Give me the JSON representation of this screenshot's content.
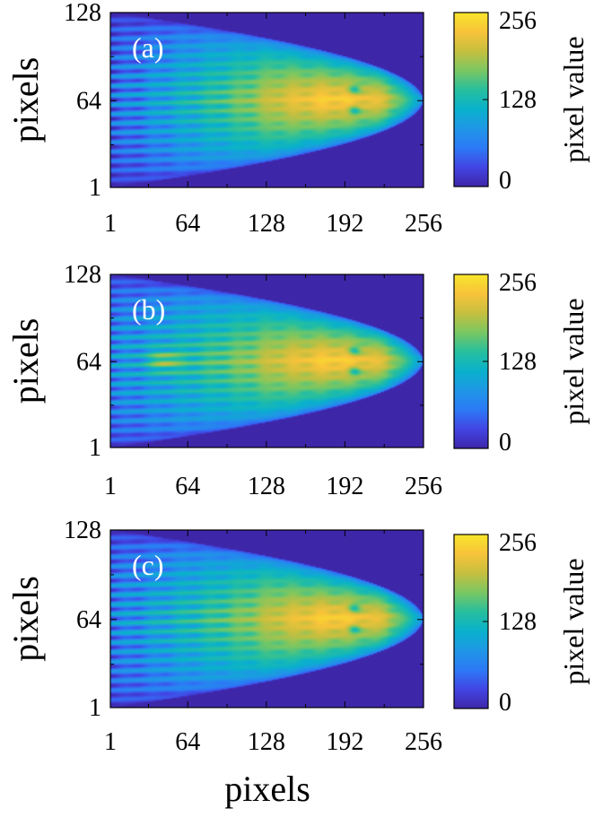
{
  "colors": {
    "background": "#3e26a8",
    "axis": "#000000",
    "panel_label": "#ffffff",
    "colormap": [
      "#3e26a8",
      "#4245e4",
      "#2c79f6",
      "#1f97e6",
      "#09b1cc",
      "#27bf9e",
      "#7ac762",
      "#c6bf3f",
      "#f8c33a",
      "#f9e62b"
    ]
  },
  "colormap_name": "parula",
  "x_axis_title": "pixels",
  "chart_data": [
    {
      "type": "heatmap",
      "panel_label": "(a)",
      "xlabel": "",
      "ylabel": "pixels",
      "xlim": [
        1,
        256
      ],
      "ylim": [
        1,
        128
      ],
      "x_ticks": [
        "1",
        "64",
        "128",
        "192",
        "256"
      ],
      "y_ticks": [
        "1",
        "64",
        "128"
      ],
      "colorbar": {
        "label": "pixel value",
        "range": [
          0,
          256
        ],
        "ticks": [
          "0",
          "128",
          "256"
        ]
      },
      "description": "Arrowhead-shaped interference pattern, background 0, peak ~230 near x 160-220, y 64; fringes extend left with low values near x 20-60"
    },
    {
      "type": "heatmap",
      "panel_label": "(b)",
      "xlabel": "",
      "ylabel": "pixels",
      "xlim": [
        1,
        256
      ],
      "ylim": [
        1,
        128
      ],
      "x_ticks": [
        "1",
        "64",
        "128",
        "192",
        "256"
      ],
      "y_ticks": [
        "1",
        "64",
        "128"
      ],
      "colorbar": {
        "label": "pixel value",
        "range": [
          0,
          256
        ],
        "ticks": [
          "0",
          "128",
          "256"
        ]
      },
      "description": "Similar pattern with bright spot near x 40, y 64"
    },
    {
      "type": "heatmap",
      "panel_label": "(c)",
      "xlabel": "pixels",
      "ylabel": "pixels",
      "xlim": [
        1,
        256
      ],
      "ylim": [
        1,
        128
      ],
      "x_ticks": [
        "1",
        "64",
        "128",
        "192",
        "256"
      ],
      "y_ticks": [
        "1",
        "64",
        "128"
      ],
      "colorbar": {
        "label": "pixel value",
        "range": [
          0,
          256
        ],
        "ticks": [
          "0",
          "128",
          "256"
        ]
      },
      "description": "Similar pattern, slightly brighter left fringes"
    }
  ]
}
